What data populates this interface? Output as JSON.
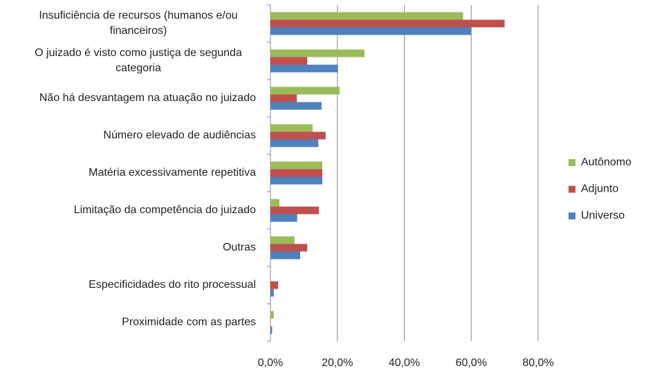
{
  "chart_data": {
    "type": "bar",
    "orientation": "horizontal",
    "categories": [
      "Insuficiência de recursos (humanos e/ou financeiros)",
      "O juizado é visto como justiça de segunda categoria",
      "Não há desvantagem na atuação no juizado",
      "Número elevado de audiências",
      "Matéria excessivamente repetitiva",
      "Limitação da competência do juizado",
      "Outras",
      "Especificidades do rito processual",
      "Proximidade com as partes"
    ],
    "series": [
      {
        "name": "Autônomo",
        "color": "#9bbb59",
        "values": [
          57.6,
          28.1,
          20.7,
          12.6,
          15.5,
          2.7,
          7.2,
          0,
          1
        ]
      },
      {
        "name": "Adjunto",
        "color": "#c0504d",
        "values": [
          70,
          11,
          7.9,
          16.5,
          15.5,
          14.5,
          11,
          2.3,
          0
        ]
      },
      {
        "name": "Universo",
        "color": "#4f81bd",
        "values": [
          60,
          20.2,
          15.3,
          14.3,
          15.5,
          8,
          8.9,
          1,
          0.5
        ]
      }
    ],
    "xlim": [
      0,
      80
    ],
    "xticks": [
      {
        "value": 0,
        "label": "0,0%"
      },
      {
        "value": 20,
        "label": "20,0%"
      },
      {
        "value": 40,
        "label": "40,0%"
      },
      {
        "value": 60,
        "label": "60,0%"
      },
      {
        "value": 80,
        "label": "80,0%"
      }
    ],
    "grid": true,
    "legend": "right"
  }
}
